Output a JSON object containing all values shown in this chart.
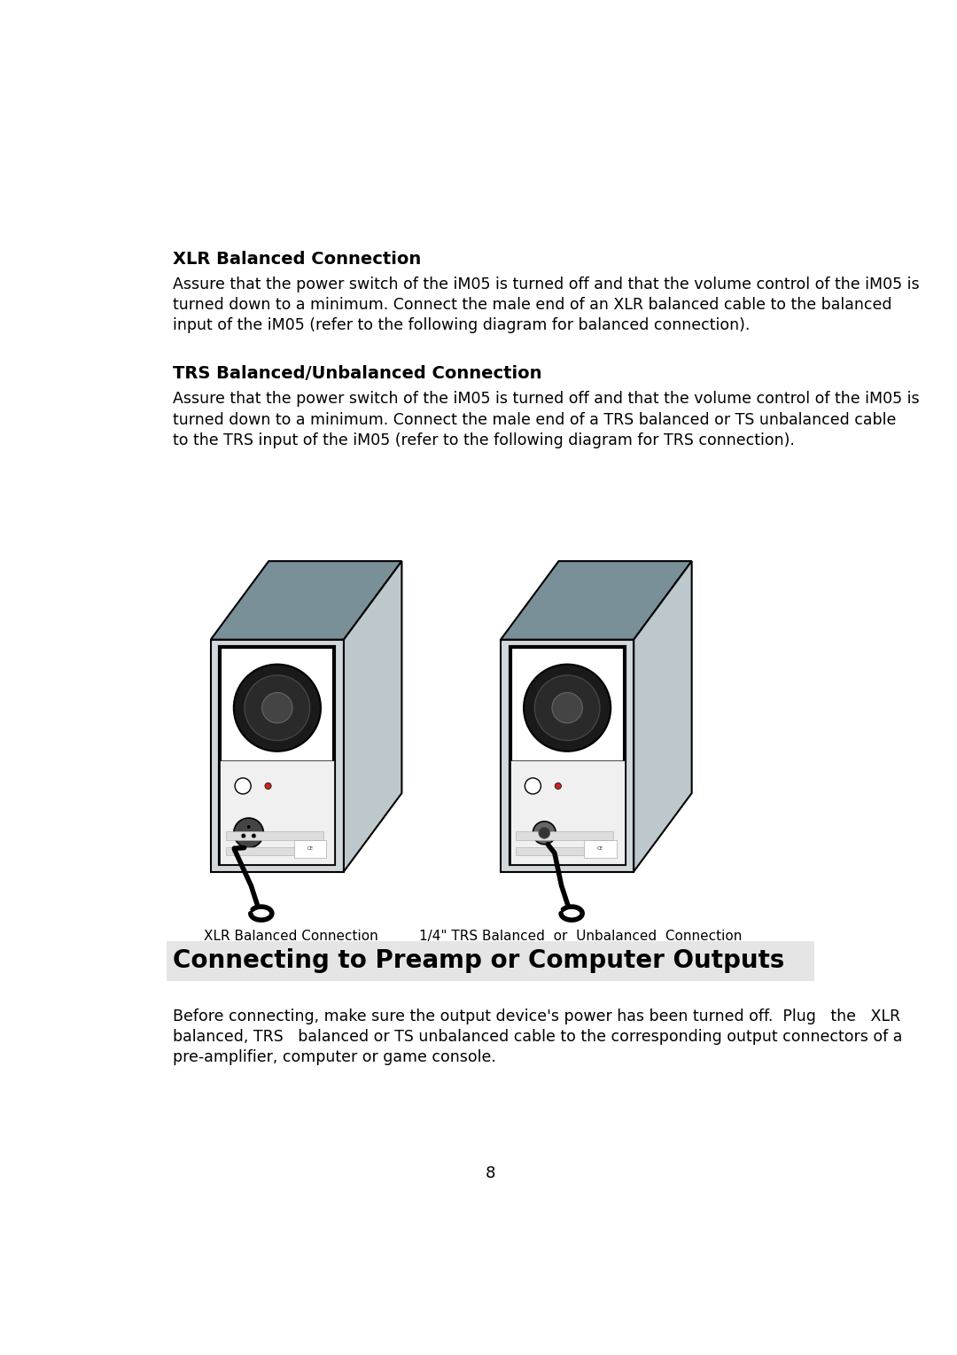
{
  "page_background": "#ffffff",
  "xlr_heading": "XLR Balanced Connection",
  "xlr_body_line1": "Assure that the power switch of the iM05 is turned off and that the volume control of the iM05 is",
  "xlr_body_line2": "turned down to a minimum. Connect the male end of an XLR balanced cable to the balanced",
  "xlr_body_line3": "input of the iM05 (refer to the following diagram for balanced connection).",
  "trs_heading": "TRS Balanced/Unbalanced Connection",
  "trs_body_line1": "Assure that the power switch of the iM05 is turned off and that the volume control of the iM05 is",
  "trs_body_line2": "turned down to a minimum. Connect the male end of a TRS balanced or TS unbalanced cable",
  "trs_body_line3": "to the TRS input of the iM05 (refer to the following diagram for TRS connection).",
  "xlr_caption": "XLR Balanced Connection",
  "trs_caption": "1/4\" TRS Balanced  or  Unbalanced  Connection",
  "section_title": "Connecting to Preamp or Computer Outputs",
  "section_body_line1": "Before connecting, make sure the output device's power has been turned off.  Plug   the   XLR",
  "section_body_line2": "balanced, TRS   balanced or TS unbalanced cable to the corresponding output connectors of a",
  "section_body_line3": "pre-amplifier, computer or game console.",
  "page_number": "8",
  "speaker_front_color": "#d0d8dc",
  "speaker_top_color": "#7a9099",
  "speaker_side_color": "#bcc8cc",
  "section_bg": "#e5e5e5",
  "text_color": "#000000"
}
